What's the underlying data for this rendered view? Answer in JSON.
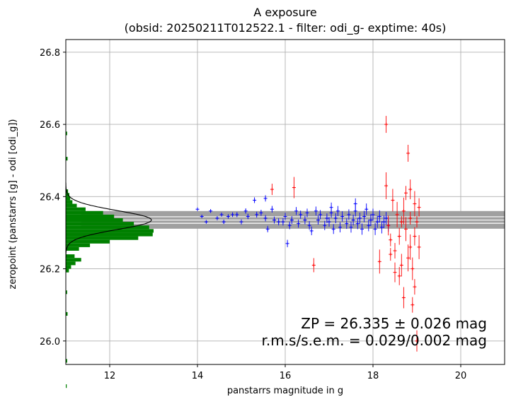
{
  "chart_data": {
    "type": "scatter",
    "title": "A exposure",
    "subtitle": "(obsid: 20250211T012522.1 - filter: odi_g- exptime: 40s)",
    "xlabel": "panstarrs magnitude in g",
    "ylabel": "zeropoint (panstarrs [g] - odi [odi_g])",
    "xlim": [
      11.0,
      21.0
    ],
    "ylim": [
      25.935,
      26.835
    ],
    "xticks": [
      "12",
      "14",
      "16",
      "18",
      "20"
    ],
    "yticks": [
      "26.0",
      "26.2",
      "26.4",
      "26.6",
      "26.8"
    ],
    "grid": true,
    "zeropoint": {
      "value": 26.335,
      "band_inner": [
        26.311,
        26.326,
        26.344,
        26.36
      ]
    },
    "annotation": {
      "line1": "ZP = 26.335 ± 0.026 mag",
      "line2": "r.m.s/s.e.m. = 0.029/0.002 mag"
    },
    "series": [
      {
        "color": "#0000ff",
        "points": [
          [
            14.0,
            26.365
          ],
          [
            14.1,
            26.345
          ],
          [
            14.2,
            26.33
          ],
          [
            14.3,
            26.36
          ],
          [
            14.45,
            26.34
          ],
          [
            14.55,
            26.35
          ],
          [
            14.6,
            26.33
          ],
          [
            14.7,
            26.345
          ],
          [
            14.8,
            26.35
          ],
          [
            14.9,
            26.35
          ],
          [
            15.0,
            26.33
          ],
          [
            15.1,
            26.36
          ],
          [
            15.15,
            26.345
          ],
          [
            15.3,
            26.39
          ],
          [
            15.35,
            26.35
          ],
          [
            15.45,
            26.355
          ],
          [
            15.55,
            26.34
          ],
          [
            15.6,
            26.31
          ],
          [
            15.7,
            26.365
          ],
          [
            15.75,
            26.335
          ],
          [
            15.85,
            26.33
          ],
          [
            15.95,
            26.33
          ],
          [
            16.0,
            26.345
          ],
          [
            16.05,
            26.27
          ],
          [
            16.1,
            26.32
          ],
          [
            16.15,
            26.335
          ],
          [
            16.25,
            26.36
          ],
          [
            16.3,
            26.325
          ],
          [
            16.35,
            26.35
          ],
          [
            16.45,
            26.335
          ],
          [
            16.5,
            26.355
          ],
          [
            16.55,
            26.32
          ],
          [
            16.6,
            26.305
          ],
          [
            16.7,
            26.36
          ],
          [
            16.75,
            26.335
          ],
          [
            16.8,
            26.35
          ],
          [
            16.9,
            26.32
          ],
          [
            16.95,
            26.34
          ],
          [
            17.0,
            26.33
          ],
          [
            17.05,
            26.355
          ],
          [
            17.1,
            26.31
          ],
          [
            17.15,
            26.34
          ],
          [
            17.2,
            26.36
          ],
          [
            17.25,
            26.315
          ],
          [
            17.3,
            26.345
          ],
          [
            17.4,
            26.325
          ],
          [
            17.45,
            26.35
          ],
          [
            17.5,
            26.315
          ],
          [
            17.55,
            26.335
          ],
          [
            17.6,
            26.36
          ],
          [
            17.65,
            26.325
          ],
          [
            17.7,
            26.34
          ],
          [
            17.75,
            26.31
          ],
          [
            17.8,
            26.345
          ],
          [
            17.85,
            26.365
          ],
          [
            17.9,
            26.32
          ],
          [
            17.95,
            26.335
          ],
          [
            18.0,
            26.35
          ],
          [
            18.05,
            26.31
          ],
          [
            18.1,
            26.33
          ],
          [
            18.15,
            26.345
          ],
          [
            18.2,
            26.315
          ],
          [
            18.25,
            26.33
          ],
          [
            18.3,
            26.34
          ],
          [
            18.35,
            26.32
          ],
          [
            15.55,
            26.395
          ],
          [
            17.05,
            26.37
          ],
          [
            17.6,
            26.38
          ]
        ]
      },
      {
        "color": "#ff0000",
        "points": [
          [
            15.7,
            26.42
          ],
          [
            16.2,
            26.425
          ],
          [
            16.65,
            26.21
          ],
          [
            18.15,
            26.22
          ],
          [
            18.3,
            26.6
          ],
          [
            18.3,
            26.43
          ],
          [
            18.35,
            26.32
          ],
          [
            18.4,
            26.28
          ],
          [
            18.45,
            26.39
          ],
          [
            18.5,
            26.25
          ],
          [
            18.55,
            26.35
          ],
          [
            18.6,
            26.18
          ],
          [
            18.65,
            26.33
          ],
          [
            18.7,
            26.12
          ],
          [
            18.75,
            26.41
          ],
          [
            18.75,
            26.31
          ],
          [
            18.8,
            26.52
          ],
          [
            18.8,
            26.23
          ],
          [
            18.85,
            26.42
          ],
          [
            18.85,
            26.34
          ],
          [
            18.9,
            26.2
          ],
          [
            18.9,
            26.1
          ],
          [
            18.95,
            26.38
          ],
          [
            18.95,
            26.29
          ],
          [
            19.0,
            26.33
          ],
          [
            19.0,
            26.0
          ],
          [
            19.0,
            25.93
          ],
          [
            19.05,
            26.26
          ],
          [
            18.6,
            26.29
          ],
          [
            18.7,
            26.36
          ],
          [
            18.5,
            26.19
          ],
          [
            18.4,
            26.24
          ],
          [
            18.65,
            26.21
          ],
          [
            18.95,
            26.15
          ],
          [
            18.85,
            26.26
          ],
          [
            19.05,
            26.37
          ]
        ]
      }
    ],
    "histogram": {
      "color": "#008000",
      "bins": [
        [
          25.87,
          25.88,
          0.02
        ],
        [
          25.94,
          25.95,
          0.03
        ],
        [
          26.07,
          26.08,
          0.04
        ],
        [
          26.13,
          26.14,
          0.03
        ],
        [
          26.19,
          26.2,
          0.07
        ],
        [
          26.2,
          26.21,
          0.12
        ],
        [
          26.21,
          26.22,
          0.22
        ],
        [
          26.22,
          26.23,
          0.35
        ],
        [
          26.23,
          26.24,
          0.2
        ],
        [
          26.25,
          26.26,
          0.3
        ],
        [
          26.26,
          26.27,
          0.55
        ],
        [
          26.27,
          26.28,
          1.0
        ],
        [
          26.28,
          26.29,
          1.65
        ],
        [
          26.29,
          26.3,
          1.98
        ],
        [
          26.3,
          26.31,
          2.0
        ],
        [
          26.31,
          26.32,
          1.9
        ],
        [
          26.32,
          26.33,
          1.55
        ],
        [
          26.33,
          26.34,
          1.3
        ],
        [
          26.34,
          26.35,
          1.1
        ],
        [
          26.35,
          26.36,
          0.85
        ],
        [
          26.36,
          26.37,
          0.45
        ],
        [
          26.37,
          26.38,
          0.25
        ],
        [
          26.38,
          26.39,
          0.15
        ],
        [
          26.39,
          26.4,
          0.1
        ],
        [
          26.4,
          26.41,
          0.08
        ],
        [
          26.41,
          26.42,
          0.05
        ],
        [
          26.5,
          26.51,
          0.04
        ],
        [
          26.57,
          26.58,
          0.03
        ]
      ],
      "gauss": {
        "mu": 26.335,
        "sigma": 0.026,
        "peak": 1.95
      }
    }
  }
}
